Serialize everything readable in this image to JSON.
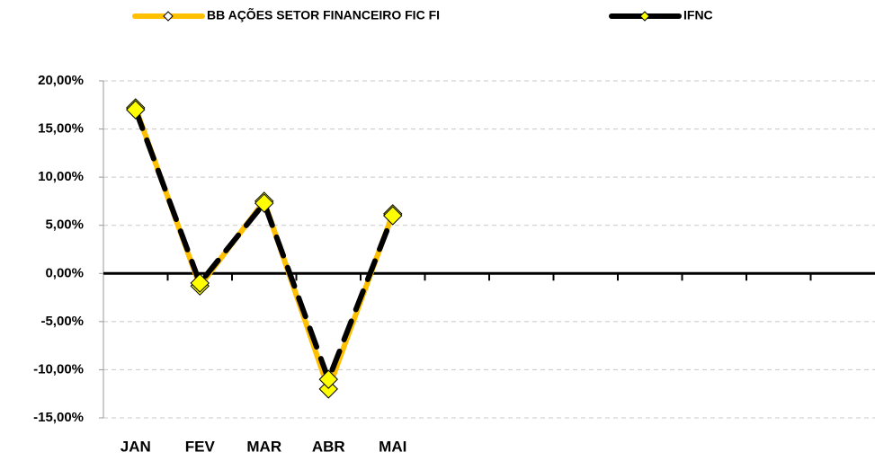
{
  "chart_data": {
    "type": "line",
    "categories": [
      "JAN",
      "FEV",
      "MAR",
      "ABR",
      "MAI",
      null,
      null,
      null,
      null,
      null,
      null,
      null
    ],
    "series": [
      {
        "name": "BB AÇÕES SETOR FINANCEIRO FIC FI",
        "color": "#ffc000",
        "values": [
          17.2,
          -1.3,
          7.5,
          -12.0,
          6.2,
          null,
          null,
          null,
          null,
          null,
          null,
          null
        ]
      },
      {
        "name": "IFNC",
        "color": "#000000",
        "values": [
          17.0,
          -1.0,
          7.3,
          -11.0,
          6.0,
          null,
          null,
          null,
          null,
          null,
          null,
          null
        ]
      }
    ],
    "marker_color": "#ffff00",
    "ylim": [
      -15,
      20
    ],
    "yticks": [
      {
        "value": -15,
        "label": "-15,00%"
      },
      {
        "value": -10,
        "label": "-10,00%"
      },
      {
        "value": -5,
        "label": "-5,00%"
      },
      {
        "value": 0,
        "label": "0,00%"
      },
      {
        "value": 5,
        "label": "5,00%"
      },
      {
        "value": 10,
        "label": "10,00%"
      },
      {
        "value": 15,
        "label": "15,00%"
      },
      {
        "value": 20,
        "label": "20,00%"
      }
    ],
    "grid": true,
    "legend": "top"
  }
}
